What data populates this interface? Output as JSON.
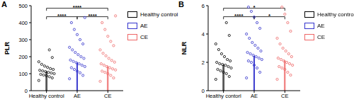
{
  "chart_data": [
    {
      "type": "bar",
      "title": "A",
      "y_label": "PLR",
      "categories": [
        "Healthy control",
        "AE",
        "CE"
      ],
      "values": [
        112,
        165,
        142
      ],
      "colors": [
        "#000000",
        "#3333cc",
        "#ee6666"
      ],
      "legend": "top right",
      "legend_labels": [
        "Healthy control",
        "AE",
        "CE"
      ],
      "ylim": [
        0,
        500
      ],
      "yticks": [
        0,
        100,
        200,
        300,
        400,
        500
      ],
      "points": [
        [
          60,
          75,
          82,
          88,
          92,
          96,
          100,
          104,
          108,
          112,
          116,
          120,
          125,
          130,
          138,
          145,
          155,
          170,
          195,
          240
        ],
        [
          70,
          90,
          105,
          115,
          125,
          135,
          142,
          150,
          158,
          165,
          172,
          180,
          190,
          200,
          212,
          225,
          240,
          255,
          275,
          300,
          330,
          360,
          400,
          430
        ],
        [
          55,
          75,
          90,
          100,
          108,
          115,
          122,
          128,
          135,
          142,
          150,
          158,
          168,
          178,
          190,
          205,
          220,
          240,
          265,
          290,
          320,
          360,
          400,
          440
        ]
      ],
      "significance": [
        {
          "groups": [
            0,
            2
          ],
          "label": "****"
        },
        {
          "groups": [
            0,
            1
          ],
          "label": "****"
        },
        {
          "groups": [
            1,
            2
          ],
          "label": "****"
        }
      ]
    },
    {
      "type": "bar",
      "title": "B",
      "y_label": "NLR",
      "categories": [
        "Healthy contorl",
        "AE",
        "CE"
      ],
      "values": [
        1.82,
        2.45,
        2.12
      ],
      "colors": [
        "#000000",
        "#3333cc",
        "#ee6666"
      ],
      "legend": "top right",
      "legend_labels": [
        "Healthy control",
        "AE",
        "CE"
      ],
      "ylim": [
        0,
        6
      ],
      "yticks": [
        0,
        2,
        4,
        6
      ],
      "points": [
        [
          0.8,
          1.0,
          1.2,
          1.3,
          1.4,
          1.5,
          1.6,
          1.7,
          1.8,
          1.85,
          1.9,
          2.0,
          2.1,
          2.2,
          2.4,
          2.6,
          2.9,
          3.3,
          3.9,
          4.8
        ],
        [
          0.9,
          1.3,
          1.6,
          1.8,
          2.0,
          2.1,
          2.2,
          2.3,
          2.4,
          2.5,
          2.6,
          2.7,
          2.8,
          3.0,
          3.2,
          3.4,
          3.7,
          4.0,
          4.4,
          4.8,
          5.2,
          5.6,
          5.9
        ],
        [
          0.8,
          1.1,
          1.3,
          1.5,
          1.6,
          1.7,
          1.8,
          1.9,
          2.0,
          2.1,
          2.2,
          2.3,
          2.4,
          2.6,
          2.8,
          3.0,
          3.3,
          3.7,
          4.2,
          4.8,
          5.4,
          5.9
        ]
      ],
      "significance": [
        {
          "groups": [
            0,
            2
          ],
          "label": "*"
        },
        {
          "groups": [
            0,
            1
          ],
          "label": "****"
        },
        {
          "groups": [
            1,
            2
          ],
          "label": "*"
        }
      ]
    }
  ]
}
